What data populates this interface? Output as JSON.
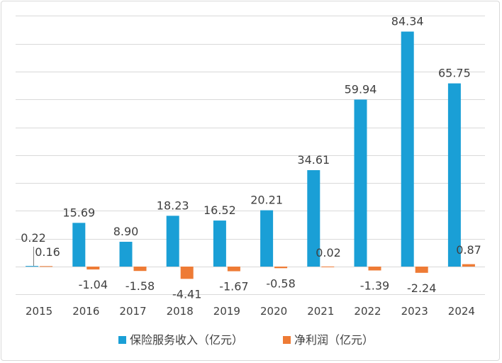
{
  "chart_data": {
    "type": "bar",
    "categories": [
      "2015",
      "2016",
      "2017",
      "2018",
      "2019",
      "2020",
      "2021",
      "2022",
      "2023",
      "2024"
    ],
    "series": [
      {
        "name": "保险服务收入（亿元）",
        "color": "#1a9fd6",
        "values": [
          0.22,
          15.69,
          8.9,
          18.23,
          16.52,
          20.21,
          34.61,
          59.94,
          84.34,
          65.75
        ],
        "labels": [
          "0.22",
          "15.69",
          "8.90",
          "18.23",
          "16.52",
          "20.21",
          "34.61",
          "59.94",
          "84.34",
          "65.75"
        ]
      },
      {
        "name": "净利润（亿元）",
        "color": "#ee7b35",
        "values": [
          0.16,
          -1.04,
          -1.58,
          -4.41,
          -1.67,
          -0.58,
          0.02,
          -1.39,
          -2.24,
          0.87
        ],
        "labels": [
          "0.16",
          "-1.04",
          "-1.58",
          "-4.41",
          "-1.67",
          "-0.58",
          "0.02",
          "-1.39",
          "-2.24",
          "0.87"
        ]
      }
    ],
    "ylim": [
      -10,
      90
    ],
    "grid": true,
    "legend_position": "bottom"
  }
}
